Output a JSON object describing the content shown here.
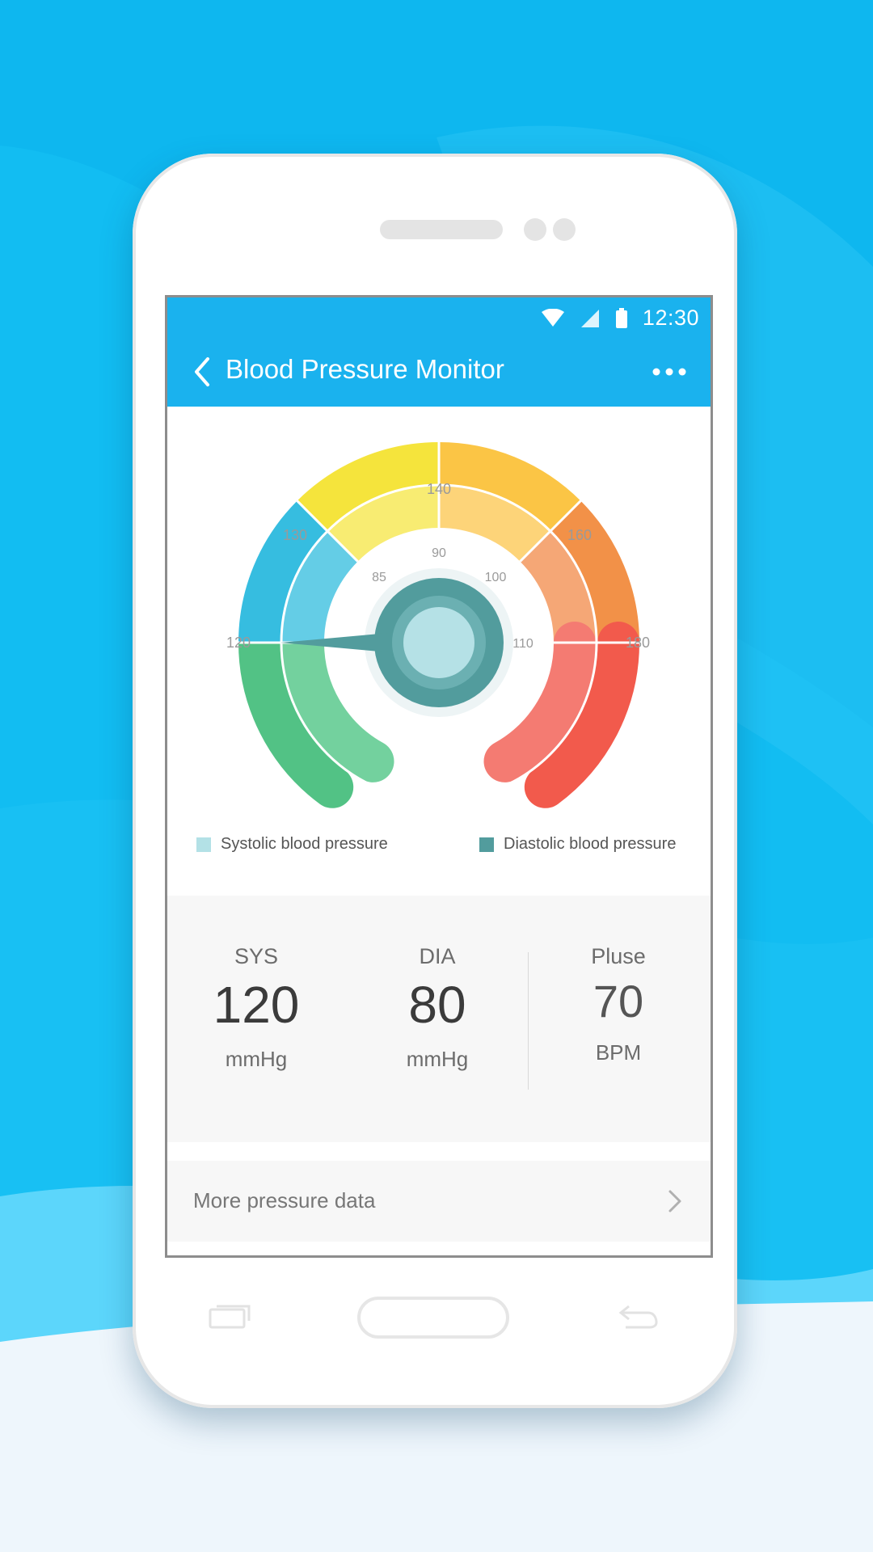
{
  "colors": {
    "sky": "#12bdf2",
    "appbar": "#1ab2ee",
    "green_outer": "#52c285",
    "green_inner": "#73d19e",
    "blue_outer": "#36bde0",
    "blue_inner": "#64cde6",
    "yellow_outer": "#f5e43c",
    "yellow_inner": "#f8ec72",
    "amber_outer": "#fbc545",
    "amber_inner": "#fdd479",
    "orange_outer": "#f29148",
    "orange_inner": "#f5a776",
    "red_outer": "#f25a4c",
    "red_inner": "#f47b72",
    "hub_dark": "#529c9d",
    "hub_light": "#b5e1e6",
    "systolic_swatch": "#b3e1e6",
    "diastolic_swatch": "#529c9d"
  },
  "status_bar": {
    "time": "12:30",
    "icons": [
      "wifi-icon",
      "signal-icon",
      "battery-icon"
    ]
  },
  "app_bar": {
    "title": "Blood Pressure Monitor",
    "back_icon": "chevron-left-icon",
    "menu_icon": "more-horizontal-icon"
  },
  "gauge": {
    "outer_ticks": [
      "120",
      "130",
      "140",
      "160",
      "180"
    ],
    "inner_ticks": [
      "85",
      "90",
      "100",
      "110"
    ],
    "needle_value": 120
  },
  "legend": {
    "systolic": "Systolic blood pressure",
    "diastolic": "Diastolic blood pressure"
  },
  "stats": {
    "sys": {
      "label": "SYS",
      "value": "120",
      "unit": "mmHg"
    },
    "dia": {
      "label": "DIA",
      "value": "80",
      "unit": "mmHg"
    },
    "pulse": {
      "label": "Pluse",
      "value": "70",
      "unit": "BPM"
    }
  },
  "more_row": {
    "label": "More pressure data",
    "icon": "chevron-right-icon"
  },
  "nav": {
    "recent_icon": "recent-apps-icon",
    "home_icon": "home-button",
    "back_icon": "back-arrow-icon"
  }
}
